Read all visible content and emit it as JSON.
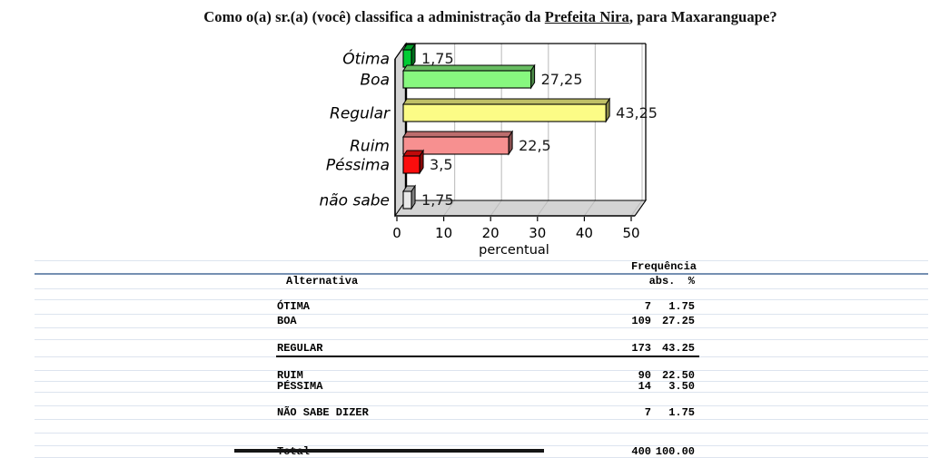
{
  "title": {
    "prefix": "Como o(a) sr.(a) (você) classifica a administração da ",
    "emphasis": "Prefeita Nira",
    "suffix": ", para Maxaranguape?"
  },
  "chart_data": {
    "type": "bar",
    "orientation": "horizontal",
    "title": "Como o(a) sr.(a) (você) classifica a administração da Prefeita Nira, para Maxaranguape?",
    "categories": [
      "Ótima",
      "Boa",
      "Regular",
      "Ruim",
      "Péssima",
      "não sabe"
    ],
    "values": [
      1.75,
      27.25,
      43.25,
      22.5,
      3.5,
      1.75
    ],
    "value_labels": [
      "1,75",
      "27,25",
      "43,25",
      "22,5",
      "3,5",
      "1,75"
    ],
    "bar_colors": [
      "#00cc33",
      "#87f87f",
      "#fcfc86",
      "#f79090",
      "#fb0d0d",
      "#e8e8e8"
    ],
    "xlabel": "percentual",
    "x_ticks": [
      0,
      10,
      20,
      30,
      40,
      50
    ],
    "xlim": [
      0,
      51
    ],
    "grid": true,
    "legend": false,
    "style": "3d-horizontal-bar"
  },
  "colors": {
    "wall": "#d4d4d4",
    "gridline": "#c4c4c4",
    "floor_gridline": "#bdbdbd",
    "plot_border": "#000000",
    "table_line_light": "#dde4ef",
    "table_line_dark": "#7590b2",
    "value_label": "#1a1a1a"
  },
  "table": {
    "header_group": "Frequência",
    "col_alternativa": "Alternativa",
    "col_abs": "abs.",
    "col_pct": "%",
    "rows": [
      {
        "label": "ÓTIMA",
        "abs": "7",
        "pct": "1.75"
      },
      {
        "label": "BOA",
        "abs": "109",
        "pct": "27.25"
      },
      {
        "label": "REGULAR",
        "abs": "173",
        "pct": "43.25",
        "underlined": true
      },
      {
        "label": "RUIM",
        "abs": "90",
        "pct": "22.50"
      },
      {
        "label": "PÉSSIMA",
        "abs": "14",
        "pct": "3.50"
      },
      {
        "label": "NÃO SABE DIZER",
        "abs": "7",
        "pct": "1.75"
      },
      {
        "label": "Total",
        "abs": "400",
        "pct": "100.00",
        "is_total": true
      }
    ]
  }
}
